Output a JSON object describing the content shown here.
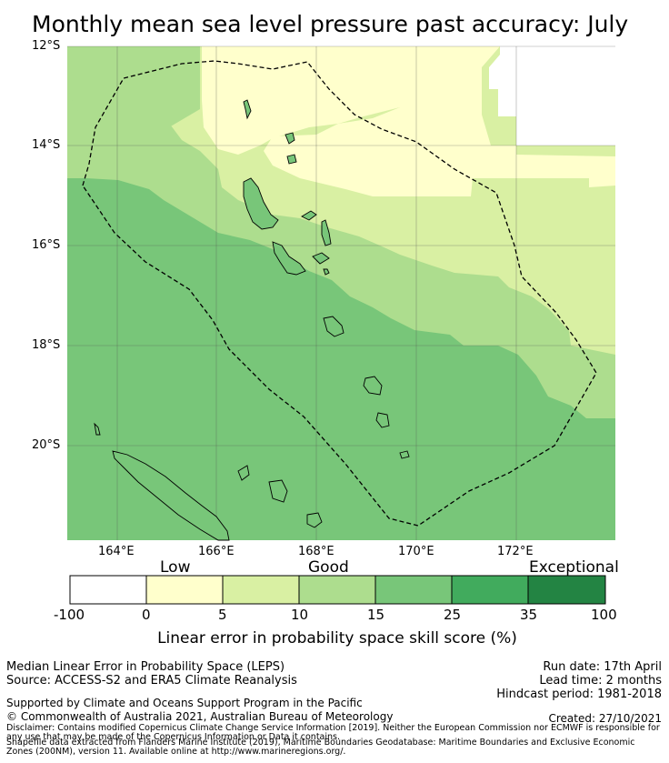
{
  "title": "Monthly mean sea level pressure past accuracy: July",
  "map": {
    "lat_labels": [
      "12°S",
      "14°S",
      "16°S",
      "18°S",
      "20°S"
    ],
    "lon_labels": [
      "164°E",
      "166°E",
      "168°E",
      "170°E",
      "172°E"
    ],
    "colors": {
      "c0": "#ffffff",
      "c1": "#ffffcc",
      "c2": "#d9f0a3",
      "c3": "#addd8e",
      "c4": "#78c679",
      "c5": "#41ab5d",
      "c6": "#238443",
      "land_outline": "#000000",
      "eez_outline": "#000000"
    }
  },
  "colorbar": {
    "categories": [
      "Low",
      "Good",
      "Exceptional"
    ],
    "ticks": [
      "-100",
      "0",
      "5",
      "10",
      "15",
      "25",
      "35",
      "100"
    ],
    "label": "Linear error in probability space skill score (%)"
  },
  "info": {
    "left_line1": "Median Linear Error in Probability Space (LEPS)",
    "left_line2": "Source: ACCESS-S2 and ERA5 Climate Reanalysis",
    "right_line1": "Run date: 17th April",
    "right_line2": "Lead time: 2 months",
    "right_line3": "Hindcast period: 1981-2018",
    "support": "Supported by Climate and Oceans Support Program in the Pacific",
    "copyright": "© Commonwealth of Australia 2021, Australian Bureau of Meteorology",
    "created": "Created: 27/10/2021",
    "disclaimer": "Disclaimer: Contains modified Copernicus Climate Change Service Information [2019]. Neither the European Commission nor ECMWF is responsible for any use that may be made of the Copernicus Information or Data it contains.",
    "shapefile": "Shapefile data extracted from Flanders Marine Institute (2019), Maritime Boundaries Geodatabase: Maritime Boundaries and Exclusive Economic Zones (200NM), version 11. Available online at http://www.marineregions.org/."
  }
}
